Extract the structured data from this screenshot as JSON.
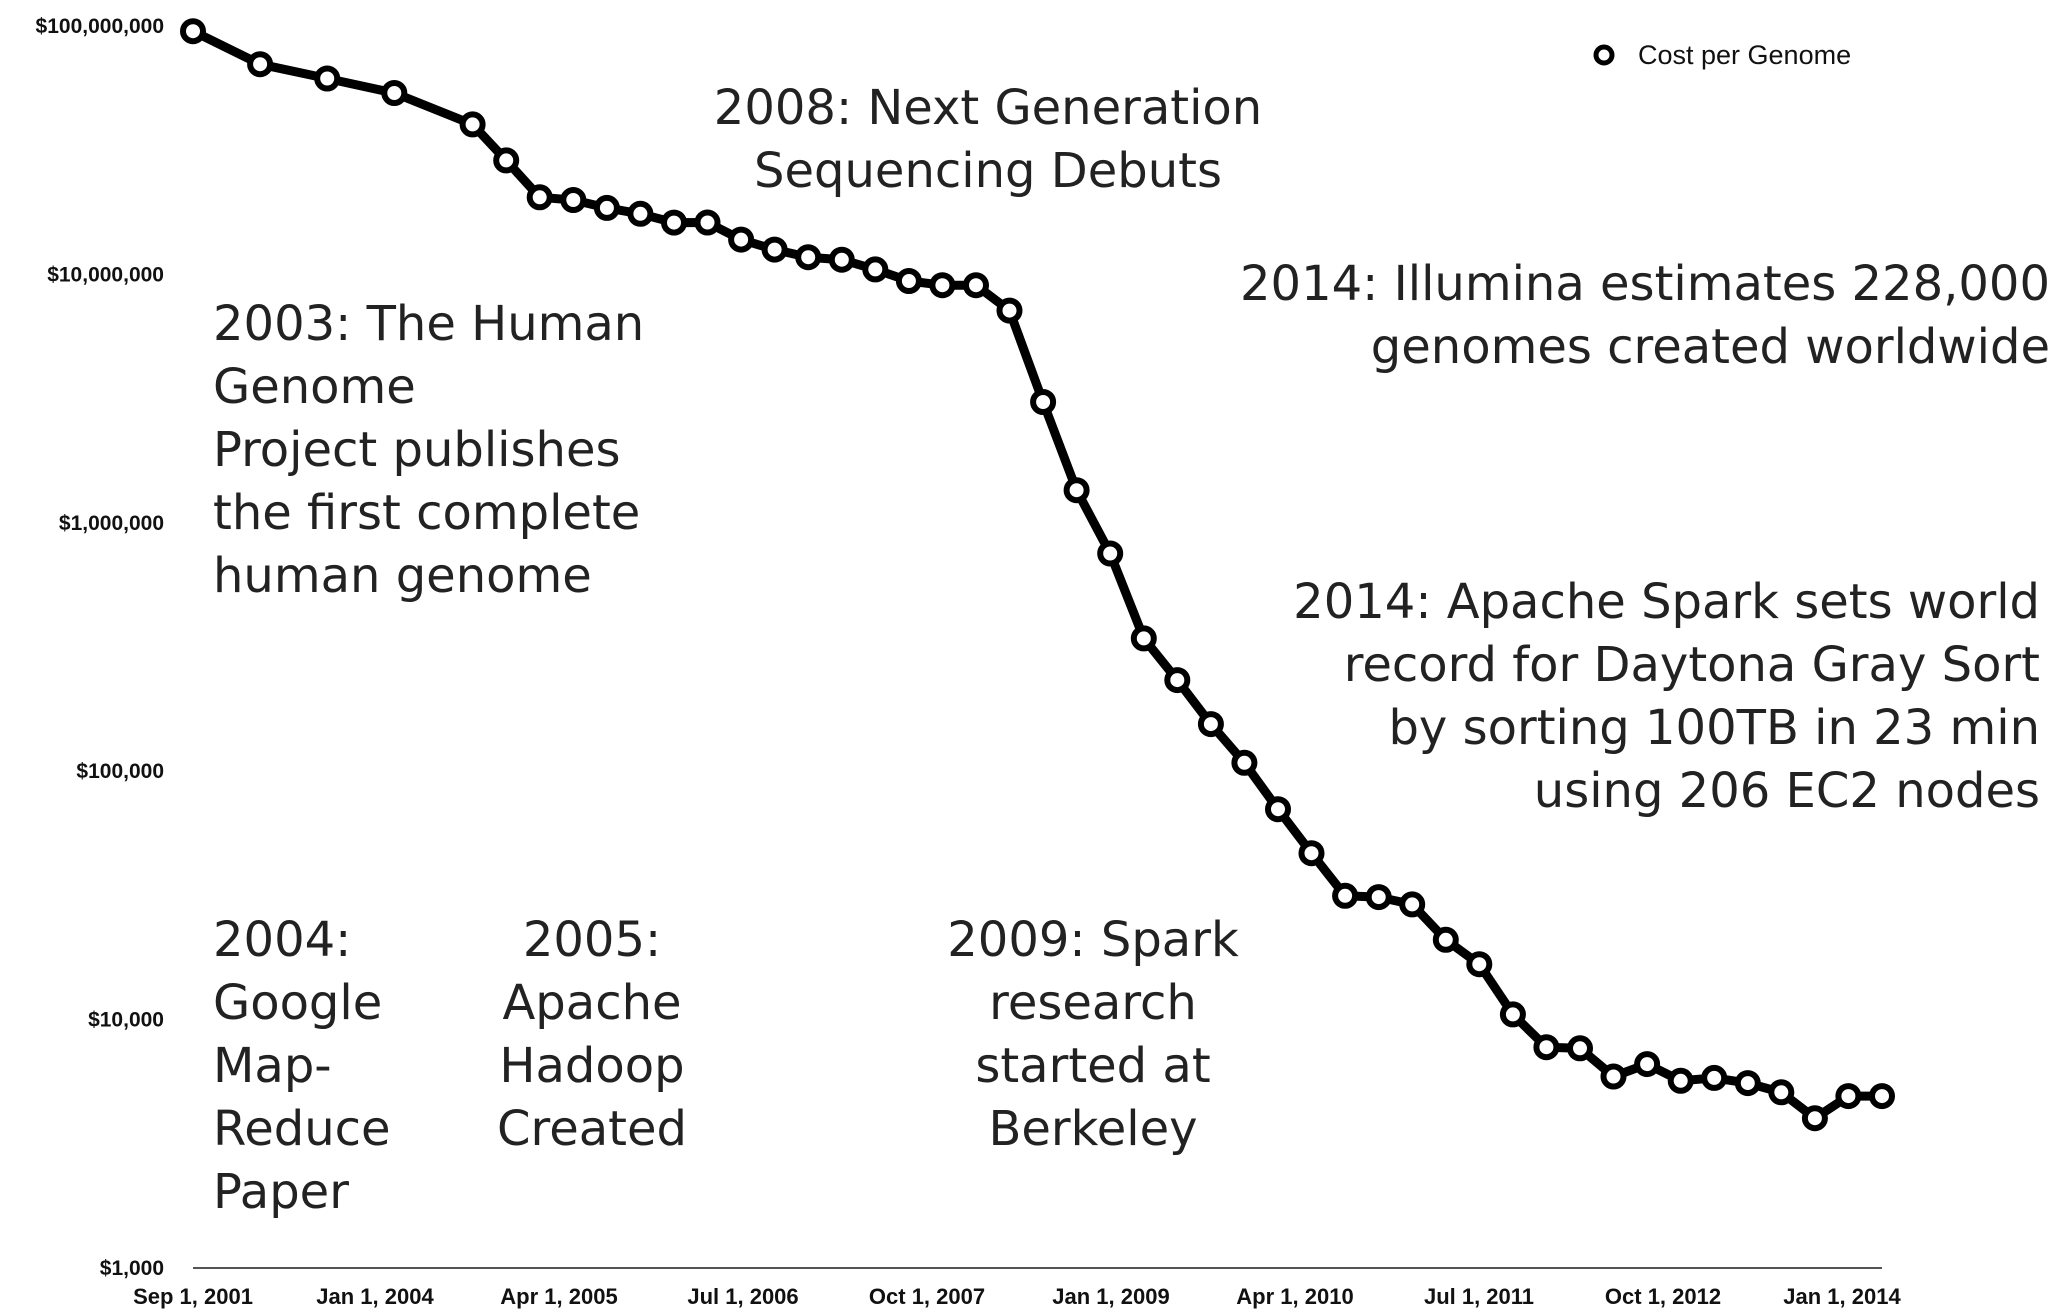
{
  "chart_data": {
    "type": "line",
    "title": "",
    "xlabel": "",
    "ylabel": "",
    "y_scale": "log",
    "ylim": [
      1000,
      100000000
    ],
    "y_ticks": [
      {
        "value": 100000000,
        "label": "$100,000,000"
      },
      {
        "value": 10000000,
        "label": "$10,000,000"
      },
      {
        "value": 1000000,
        "label": "$1,000,000"
      },
      {
        "value": 100000,
        "label": "$100,000"
      },
      {
        "value": 10000,
        "label": "$10,000"
      },
      {
        "value": 1000,
        "label": "$1,000"
      }
    ],
    "x_ticks": [
      "Sep 1, 2001",
      "Jan 1, 2004",
      "Apr 1, 2005",
      "Jul 1, 2006",
      "Oct 1, 2007",
      "Jan 1, 2009",
      "Apr 1, 2010",
      "Jul 1, 2011",
      "Oct 1, 2012",
      "Jan 1, 2014"
    ],
    "legend_position": "top-right",
    "grid": false,
    "colors": {
      "line": "#000000",
      "marker_fill": "#ffffff",
      "text": "#222222"
    },
    "series": [
      {
        "name": "Cost per Genome",
        "x": [
          "Sep 2001",
          "Mar 2002",
          "Sep 2002",
          "Mar 2003",
          "Oct 2003",
          "Jan 2004",
          "Apr 2004",
          "Jul 2004",
          "Oct 2004",
          "Jan 2005",
          "Apr 2005",
          "Jul 2005",
          "Oct 2005",
          "Jan 2006",
          "Apr 2006",
          "Jul 2006",
          "Oct 2006",
          "Jan 2007",
          "Apr 2007",
          "Jul 2007",
          "Oct 2007",
          "Jan 2008",
          "Apr 2008",
          "Jul 2008",
          "Oct 2008",
          "Jan 2009",
          "Apr 2009",
          "Jul 2009",
          "Oct 2009",
          "Jan 2010",
          "Apr 2010",
          "Jul 2010",
          "Oct 2010",
          "Jan 2011",
          "Apr 2011",
          "Jul 2011",
          "Oct 2011",
          "Jan 2012",
          "Apr 2012",
          "Jul 2012",
          "Oct 2012",
          "Jan 2013",
          "Apr 2013",
          "Jul 2013",
          "Oct 2013",
          "Jan 2014",
          "Apr 2014"
        ],
        "values": [
          95263072,
          70175437,
          61448422,
          53751684,
          40157554,
          28780376,
          20442576,
          19934346,
          18519312,
          17534970,
          16159248,
          16180632,
          13801124,
          12585659,
          11732535,
          11455315,
          10474556,
          9408739,
          9047003,
          9046518,
          7147571,
          3063064,
          1352982,
          752080,
          342502,
          232735,
          154714,
          108065,
          70333,
          46774,
          31512,
          31125,
          29092,
          20963,
          16712,
          10497,
          7743,
          7666,
          5901,
          6618,
          5671,
          5826,
          5550,
          5096,
          4008,
          4920,
          4920
        ]
      }
    ],
    "annotations": [
      {
        "text": [
          "2008: Next Generation",
          "Sequencing Debuts"
        ]
      },
      {
        "text": [
          "2003: The Human",
          "Genome",
          "Project publishes",
          "the first complete",
          "human genome"
        ]
      },
      {
        "text": [
          "2014: Illumina estimates 228,000",
          "genomes created worldwide"
        ]
      },
      {
        "text": [
          "2014: Apache Spark sets world",
          "record for Daytona Gray Sort",
          "by sorting 100TB in 23 min",
          "using 206 EC2 nodes"
        ]
      },
      {
        "text": [
          "2004:",
          "Google",
          "Map-",
          "Reduce",
          "Paper"
        ]
      },
      {
        "text": [
          "2005:",
          "Apache",
          "Hadoop",
          "Created"
        ]
      },
      {
        "text": [
          "2009: Spark",
          "research",
          "started at",
          "Berkeley"
        ]
      }
    ]
  }
}
